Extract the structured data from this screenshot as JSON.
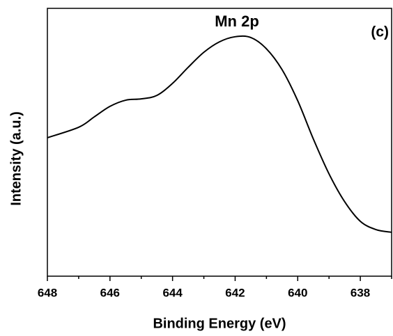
{
  "chart_data": {
    "type": "line",
    "title": "Mn 2p",
    "annotation": "(c)",
    "x_label": "Binding Energy (eV)",
    "y_label": "Intensity (a.u.)",
    "x": [
      648,
      647,
      646.5,
      646,
      645.5,
      645,
      644.5,
      644,
      643.5,
      643,
      642.5,
      642,
      641.5,
      641,
      640.5,
      640,
      639.5,
      639,
      638.5,
      638,
      637.5,
      637
    ],
    "series": [
      {
        "name": "Mn 2p",
        "color": "#000000",
        "values": [
          51.7,
          55.6,
          59.5,
          63.4,
          65.7,
          66.2,
          67.5,
          72,
          78,
          83.6,
          87.5,
          89.4,
          89.1,
          84.9,
          77.1,
          65.5,
          51.2,
          38.2,
          27.8,
          20.5,
          17.4,
          16.4
        ]
      }
    ],
    "xlim": [
      648,
      637
    ],
    "ylim": [
      0,
      100
    ],
    "xticks": [
      648,
      646,
      644,
      642,
      640,
      638
    ],
    "xminorticks": [
      647,
      645,
      643,
      641,
      639,
      637
    ]
  }
}
